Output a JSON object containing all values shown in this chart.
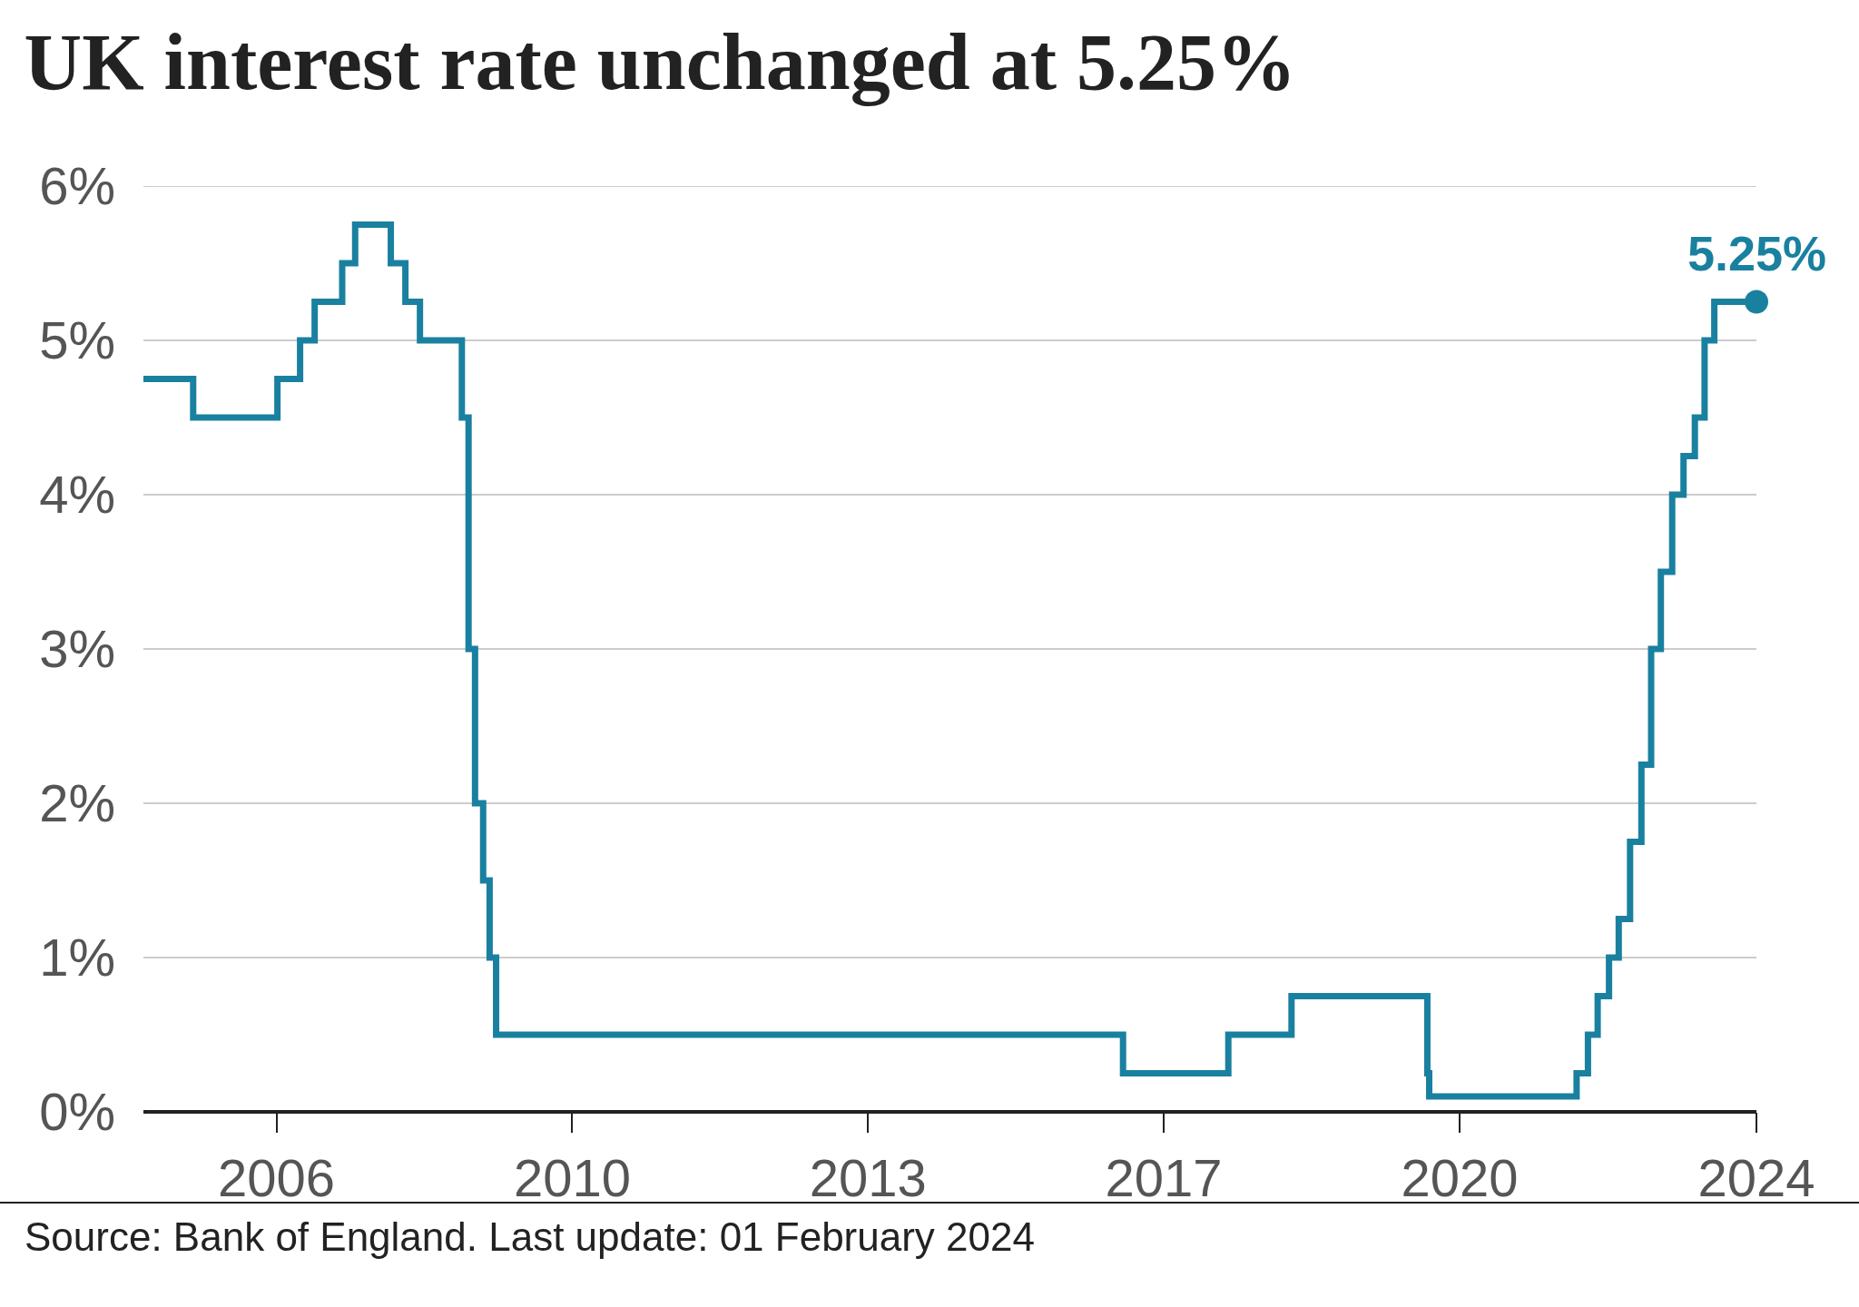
{
  "chart_data": {
    "type": "step",
    "title": "UK interest rate unchanged at 5.25%",
    "x": [
      "2005-01-01",
      "2005-08-04",
      "2006-08-03",
      "2006-11-09",
      "2007-01-11",
      "2007-05-10",
      "2007-07-05",
      "2007-12-06",
      "2008-02-07",
      "2008-04-10",
      "2008-10-08",
      "2008-11-06",
      "2008-12-04",
      "2009-01-08",
      "2009-02-05",
      "2009-03-05",
      "2016-08-04",
      "2017-11-02",
      "2018-08-02",
      "2020-03-11",
      "2020-03-19",
      "2021-12-16",
      "2022-02-03",
      "2022-03-17",
      "2022-05-05",
      "2022-06-16",
      "2022-08-04",
      "2022-09-22",
      "2022-11-03",
      "2022-12-15",
      "2023-02-02",
      "2023-03-23",
      "2023-05-11",
      "2023-06-22",
      "2023-08-03",
      "2024-02-01"
    ],
    "series": [
      {
        "color": "#1a80a0",
        "values": [
          4.75,
          4.5,
          4.75,
          5.0,
          5.25,
          5.5,
          5.75,
          5.5,
          5.25,
          5.0,
          4.5,
          3.0,
          2.0,
          1.5,
          1.0,
          0.5,
          0.25,
          0.5,
          0.75,
          0.25,
          0.1,
          0.25,
          0.5,
          0.75,
          1.0,
          1.25,
          1.75,
          2.25,
          3.0,
          3.5,
          4.0,
          4.25,
          4.5,
          5.0,
          5.25,
          5.25
        ]
      },
      {
        "type": "scatter",
        "marker": "circle",
        "color": "#1a80a0",
        "x": [
          "2024-02-01"
        ],
        "values": [
          5.25
        ]
      }
    ],
    "xlim": [
      "2005-01-01",
      "2024-02-01"
    ],
    "xticks": [
      {
        "value": "2006-07-30",
        "label": "2006"
      },
      {
        "value": "2010-01-28",
        "label": "2010"
      },
      {
        "value": "2013-07-29",
        "label": "2013"
      },
      {
        "value": "2017-01-27",
        "label": "2017"
      },
      {
        "value": "2020-07-28",
        "label": "2020"
      },
      {
        "value": "2024-02-01",
        "label": "2024"
      }
    ],
    "ylim": [
      0,
      6
    ],
    "yticks": [
      {
        "value": 0,
        "label": "0%"
      },
      {
        "value": 1,
        "label": "1%"
      },
      {
        "value": 2,
        "label": "2%"
      },
      {
        "value": 3,
        "label": "3%"
      },
      {
        "value": 4,
        "label": "4%"
      },
      {
        "value": 5,
        "label": "5%"
      },
      {
        "value": 6,
        "label": "6%"
      }
    ],
    "grid": "y",
    "marker": "none",
    "line_style": "solid",
    "annotations": [
      {
        "text": "5.25%",
        "x": "2024-02-01",
        "y": 5.25
      },
      "Source: Bank of England. Last update: 01 February 2024"
    ]
  }
}
